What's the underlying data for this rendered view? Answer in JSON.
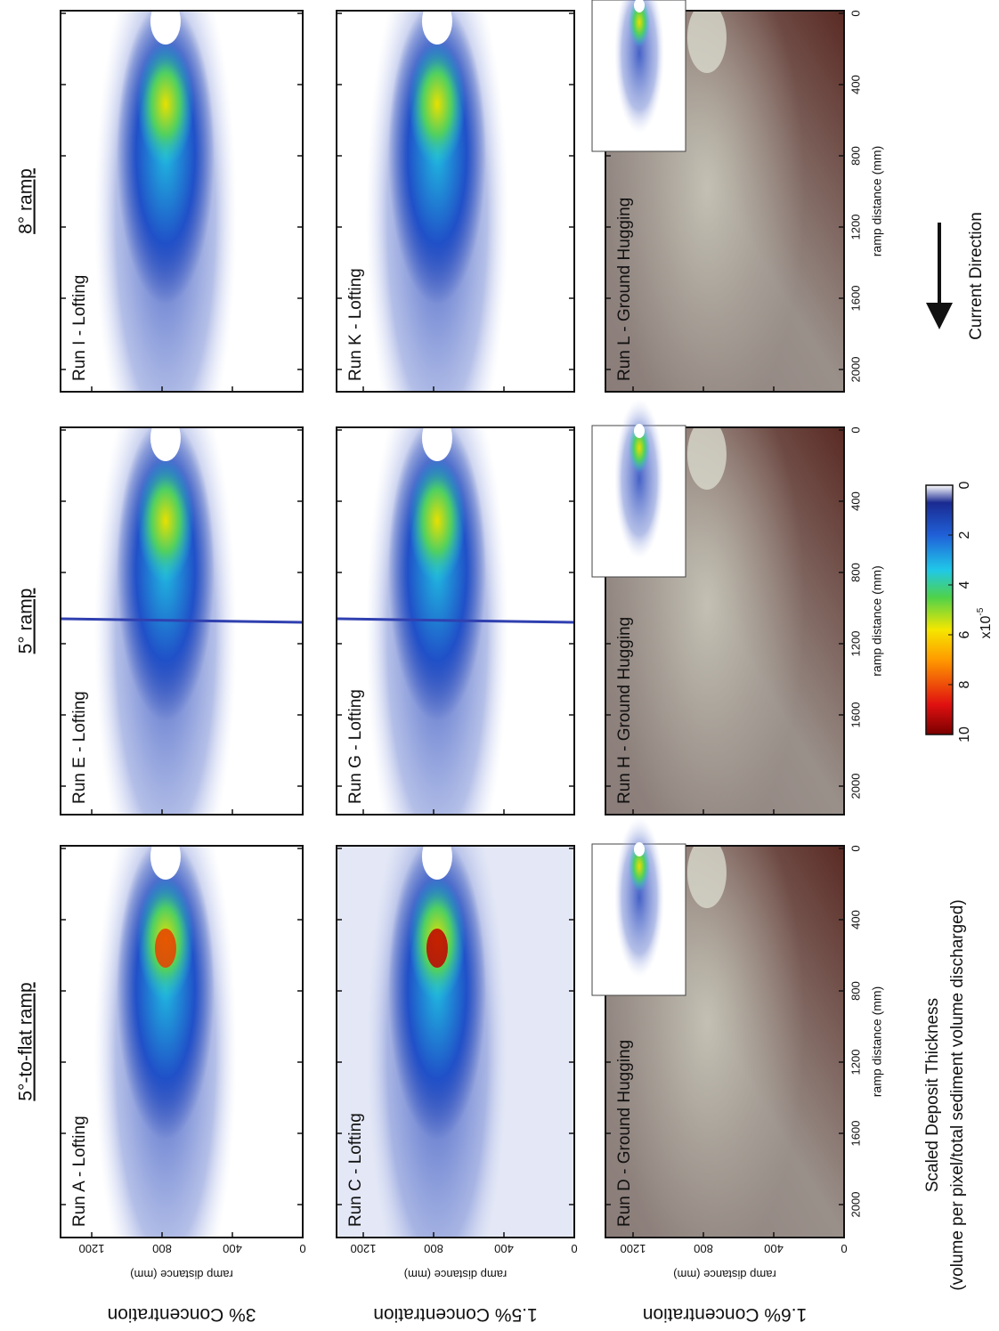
{
  "columns": [
    "5°-to-flat ramp",
    "5° ramp",
    "8° ramp"
  ],
  "rows": [
    {
      "label": "3% Concentration",
      "axis_label": "ramp distance  (mm)"
    },
    {
      "label": "1.5% Concentration",
      "axis_label": "ramp distance  (mm)"
    },
    {
      "label": "1.6% Concentration",
      "axis_label": "ramp distance  (mm)"
    }
  ],
  "panels": [
    [
      "Run A - Lofting",
      "Run E - Lofting",
      "Run I - Lofting"
    ],
    [
      "Run C - Lofting",
      "Run G - Lofting",
      "Run K - Lofting"
    ],
    [
      "Run D - Ground Hugging",
      "Run H - Ground Hugging",
      "Run L - Ground Hugging"
    ]
  ],
  "x_axis": {
    "label": "ramp distance (mm)",
    "ticks": [
      0,
      400,
      800,
      1200,
      1600,
      2000
    ]
  },
  "y_axis": {
    "ticks": [
      0,
      400,
      800,
      1200
    ]
  },
  "colorbar": {
    "title": "Scaled Deposit Thickness",
    "subtitle": "(volume per pixel/total sediment volume discharged)",
    "ticks": [
      0,
      2,
      4,
      6,
      8,
      10
    ],
    "multiplier": "x10",
    "exponent": "-5"
  },
  "arrow_label": "Current Direction"
}
